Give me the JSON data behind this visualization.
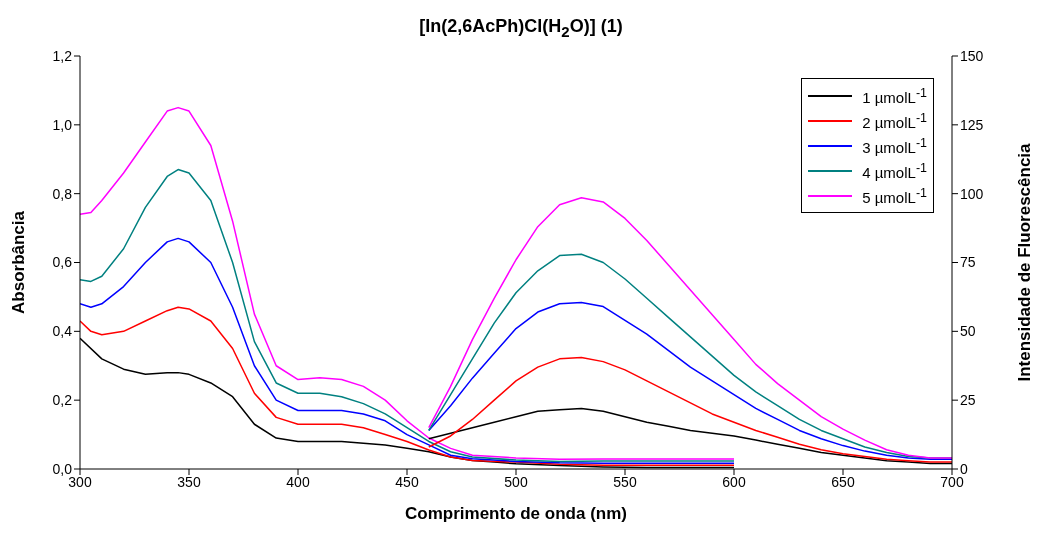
{
  "chart_data": {
    "type": "line",
    "title": "[In(2,6AcPh)Cl(H$_{2}$O)] (1)",
    "xlabel": "Comprimento de onda (nm)",
    "ylabel": "Absorbância",
    "y2label": "Intensidade de Fluorescência",
    "xlim": [
      300,
      700
    ],
    "xticks": [
      300,
      350,
      400,
      450,
      500,
      550,
      600,
      650,
      700
    ],
    "ylim": [
      0,
      1.2
    ],
    "yticks": [
      {
        "value": 0,
        "label": "0,0"
      },
      {
        "value": 0.2,
        "label": "0,2"
      },
      {
        "value": 0.4,
        "label": "0,4"
      },
      {
        "value": 0.6,
        "label": "0,6"
      },
      {
        "value": 0.8,
        "label": "0,8"
      },
      {
        "value": 1.0,
        "label": "1,0"
      },
      {
        "value": 1.2,
        "label": "1,2"
      }
    ],
    "y2lim": [
      0,
      150
    ],
    "y2ticks": [
      0,
      25,
      50,
      75,
      100,
      125,
      150
    ],
    "legend": "top right",
    "marker": "none",
    "line_style": "solid",
    "series": [
      {
        "name": "1 µmolL$^{-1}$",
        "color": "#000000",
        "x": [
          300,
          310,
          320,
          330,
          340,
          345,
          350,
          360,
          370,
          380,
          390,
          400,
          410,
          420,
          430,
          440,
          450,
          460,
          470,
          480,
          490,
          500,
          520,
          540,
          560,
          580,
          600
        ],
        "values": [
          0.38,
          0.32,
          0.29,
          0.275,
          0.28,
          0.28,
          0.275,
          0.25,
          0.21,
          0.13,
          0.09,
          0.08,
          0.08,
          0.08,
          0.075,
          0.07,
          0.06,
          0.05,
          0.035,
          0.025,
          0.02,
          0.015,
          0.01,
          0.006,
          0.004,
          0.004,
          0.004
        ]
      },
      {
        "name": "2 µmolL$^{-1}$",
        "color": "#ff0000",
        "x": [
          300,
          305,
          310,
          320,
          330,
          340,
          345,
          350,
          360,
          370,
          380,
          390,
          400,
          410,
          420,
          430,
          440,
          450,
          460,
          470,
          480,
          500,
          520,
          540,
          560,
          580,
          600
        ],
        "values": [
          0.43,
          0.4,
          0.39,
          0.4,
          0.43,
          0.46,
          0.47,
          0.465,
          0.43,
          0.35,
          0.22,
          0.15,
          0.13,
          0.13,
          0.13,
          0.12,
          0.1,
          0.08,
          0.055,
          0.035,
          0.025,
          0.02,
          0.014,
          0.011,
          0.011,
          0.011,
          0.011
        ]
      },
      {
        "name": "3 µmolL$^{-1}$",
        "color": "#0000ff",
        "x": [
          300,
          305,
          310,
          320,
          330,
          340,
          345,
          350,
          360,
          370,
          380,
          390,
          400,
          410,
          420,
          430,
          440,
          450,
          460,
          470,
          480,
          500,
          520,
          540,
          560,
          580,
          600
        ],
        "values": [
          0.48,
          0.47,
          0.48,
          0.53,
          0.6,
          0.66,
          0.67,
          0.66,
          0.6,
          0.47,
          0.3,
          0.2,
          0.17,
          0.17,
          0.17,
          0.16,
          0.14,
          0.1,
          0.07,
          0.04,
          0.03,
          0.022,
          0.018,
          0.017,
          0.017,
          0.017,
          0.017
        ]
      },
      {
        "name": "4 µmolL$^{-1}$",
        "color": "#008080",
        "x": [
          300,
          305,
          310,
          320,
          330,
          340,
          345,
          350,
          360,
          370,
          380,
          390,
          400,
          410,
          420,
          430,
          440,
          450,
          460,
          470,
          480,
          500,
          520,
          540,
          560,
          580,
          600
        ],
        "values": [
          0.55,
          0.545,
          0.56,
          0.64,
          0.76,
          0.85,
          0.87,
          0.86,
          0.78,
          0.6,
          0.37,
          0.25,
          0.22,
          0.22,
          0.21,
          0.19,
          0.16,
          0.12,
          0.08,
          0.05,
          0.035,
          0.026,
          0.022,
          0.023,
          0.023,
          0.023,
          0.023
        ]
      },
      {
        "name": "5 µmolL$^{-1}$",
        "color": "#ff00ff",
        "x": [
          300,
          305,
          310,
          320,
          330,
          340,
          345,
          350,
          360,
          370,
          380,
          390,
          400,
          410,
          420,
          430,
          440,
          450,
          460,
          470,
          480,
          500,
          520,
          540,
          560,
          580,
          600
        ],
        "values": [
          0.74,
          0.745,
          0.78,
          0.86,
          0.95,
          1.04,
          1.05,
          1.04,
          0.94,
          0.72,
          0.45,
          0.3,
          0.26,
          0.265,
          0.26,
          0.24,
          0.2,
          0.14,
          0.09,
          0.06,
          0.04,
          0.032,
          0.028,
          0.029,
          0.029,
          0.029,
          0.029
        ]
      },
      {
        "color": "#000000",
        "axis": "y2",
        "x": [
          460,
          470,
          480,
          490,
          500,
          510,
          520,
          530,
          540,
          550,
          560,
          570,
          580,
          590,
          600,
          610,
          620,
          630,
          640,
          650,
          660,
          670,
          680,
          690,
          700
        ],
        "values": [
          11,
          13,
          15,
          17,
          19,
          21,
          21.5,
          22,
          21,
          19,
          17,
          15.5,
          14,
          13,
          12,
          10.5,
          9,
          7.5,
          6,
          5,
          4,
          3,
          2.5,
          2,
          2
        ]
      },
      {
        "color": "#ff0000",
        "axis": "y2",
        "x": [
          460,
          470,
          480,
          490,
          500,
          510,
          520,
          530,
          540,
          550,
          560,
          570,
          580,
          590,
          600,
          610,
          620,
          630,
          640,
          650,
          660,
          670,
          680,
          690,
          700
        ],
        "values": [
          8,
          12,
          18,
          25,
          32,
          37,
          40,
          40.5,
          39,
          36,
          32,
          28,
          24,
          20,
          17,
          14,
          11.5,
          9,
          7,
          5.5,
          4.5,
          3.5,
          3,
          2.5,
          2.5
        ]
      },
      {
        "color": "#0000ff",
        "axis": "y2",
        "x": [
          460,
          470,
          480,
          490,
          500,
          510,
          520,
          530,
          540,
          550,
          560,
          570,
          580,
          590,
          600,
          610,
          620,
          630,
          640,
          650,
          660,
          670,
          680,
          690,
          700
        ],
        "values": [
          14,
          23,
          33,
          42,
          51,
          57,
          60,
          60.5,
          59,
          54,
          49,
          43,
          37,
          32,
          27,
          22,
          18,
          14,
          11,
          8.5,
          6.5,
          5,
          4,
          3.5,
          3.5
        ]
      },
      {
        "color": "#008080",
        "axis": "y2",
        "x": [
          460,
          470,
          480,
          490,
          500,
          510,
          520,
          530,
          540,
          550,
          560,
          570,
          580,
          590,
          600,
          610,
          620,
          630,
          640,
          650,
          660,
          670,
          680,
          690,
          700
        ],
        "values": [
          14,
          27,
          40,
          53,
          64,
          72,
          77.5,
          78,
          75,
          69,
          62,
          55,
          48,
          41,
          34,
          28,
          23,
          18,
          14,
          11,
          8,
          6,
          4.5,
          4,
          4
        ]
      },
      {
        "color": "#ff00ff",
        "axis": "y2",
        "x": [
          460,
          470,
          480,
          490,
          500,
          510,
          520,
          530,
          540,
          550,
          560,
          570,
          580,
          590,
          600,
          610,
          620,
          630,
          640,
          650,
          660,
          670,
          680,
          690,
          700
        ],
        "values": [
          15,
          30,
          47,
          62,
          76,
          88,
          96,
          98.5,
          97,
          91,
          83,
          74,
          65,
          56,
          47,
          38,
          31,
          25,
          19,
          14.5,
          10.5,
          7,
          5,
          4,
          4
        ]
      }
    ]
  }
}
